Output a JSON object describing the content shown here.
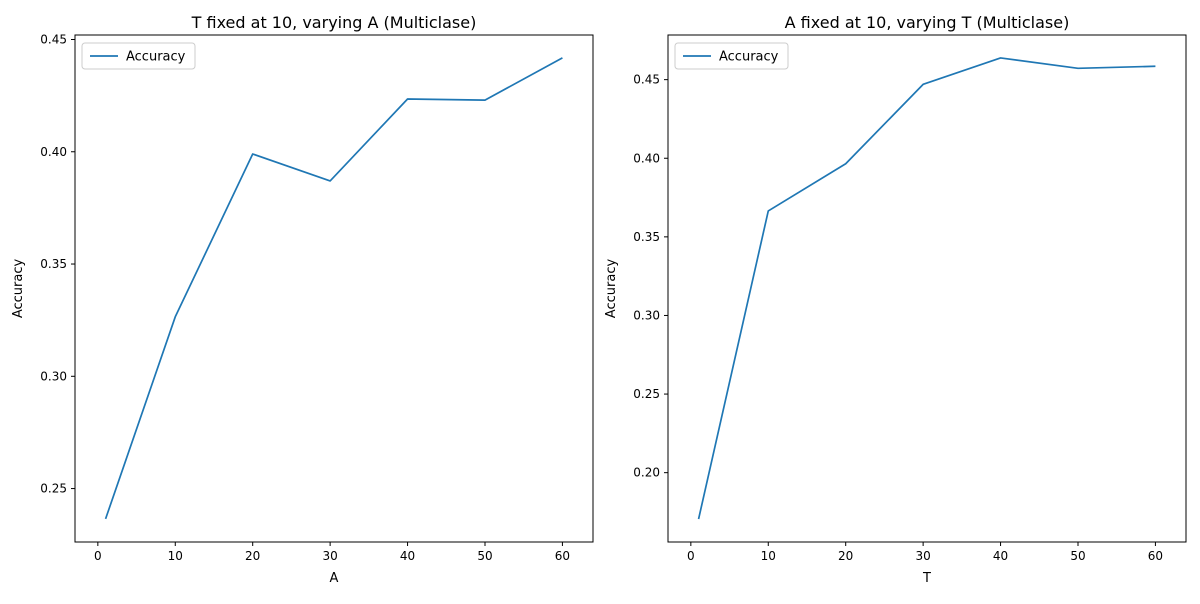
{
  "chart_data": [
    {
      "type": "line",
      "title": "T fixed at 10, varying A (Multiclase)",
      "xlabel": "A",
      "ylabel": "Accuracy",
      "x": [
        1,
        10,
        20,
        30,
        40,
        50,
        60
      ],
      "series": [
        {
          "name": "Accuracy",
          "values": [
            0.2365,
            0.3265,
            0.399,
            0.387,
            0.4235,
            0.423,
            0.4418
          ],
          "color": "#1f77b4"
        }
      ],
      "xlim": [
        -2.95,
        63.95
      ],
      "ylim": [
        0.2262,
        0.452
      ],
      "xticks": [
        0,
        10,
        20,
        30,
        40,
        50,
        60
      ],
      "xtick_labels": [
        "0",
        "10",
        "20",
        "30",
        "40",
        "50",
        "60"
      ],
      "yticks": [
        0.25,
        0.3,
        0.35,
        0.4,
        0.45
      ],
      "ytick_labels": [
        "0.25",
        "0.30",
        "0.35",
        "0.40",
        "0.45"
      ],
      "legend": {
        "position": "upper-left",
        "entries": [
          "Accuracy"
        ]
      },
      "grid": false
    },
    {
      "type": "line",
      "title": "A fixed at 10, varying T (Multiclase)",
      "xlabel": "T",
      "ylabel": "Accuracy",
      "x": [
        1,
        10,
        20,
        30,
        40,
        50,
        60
      ],
      "series": [
        {
          "name": "Accuracy",
          "values": [
            0.1705,
            0.3665,
            0.3965,
            0.447,
            0.4638,
            0.4572,
            0.4585
          ],
          "color": "#1f77b4"
        }
      ],
      "xlim": [
        -2.95,
        63.95
      ],
      "ylim": [
        0.1559,
        0.4784
      ],
      "xticks": [
        0,
        10,
        20,
        30,
        40,
        50,
        60
      ],
      "xtick_labels": [
        "0",
        "10",
        "20",
        "30",
        "40",
        "50",
        "60"
      ],
      "yticks": [
        0.2,
        0.25,
        0.3,
        0.35,
        0.4,
        0.45
      ],
      "ytick_labels": [
        "0.20",
        "0.25",
        "0.30",
        "0.35",
        "0.40",
        "0.45"
      ],
      "legend": {
        "position": "upper-left",
        "entries": [
          "Accuracy"
        ]
      },
      "grid": false
    }
  ]
}
